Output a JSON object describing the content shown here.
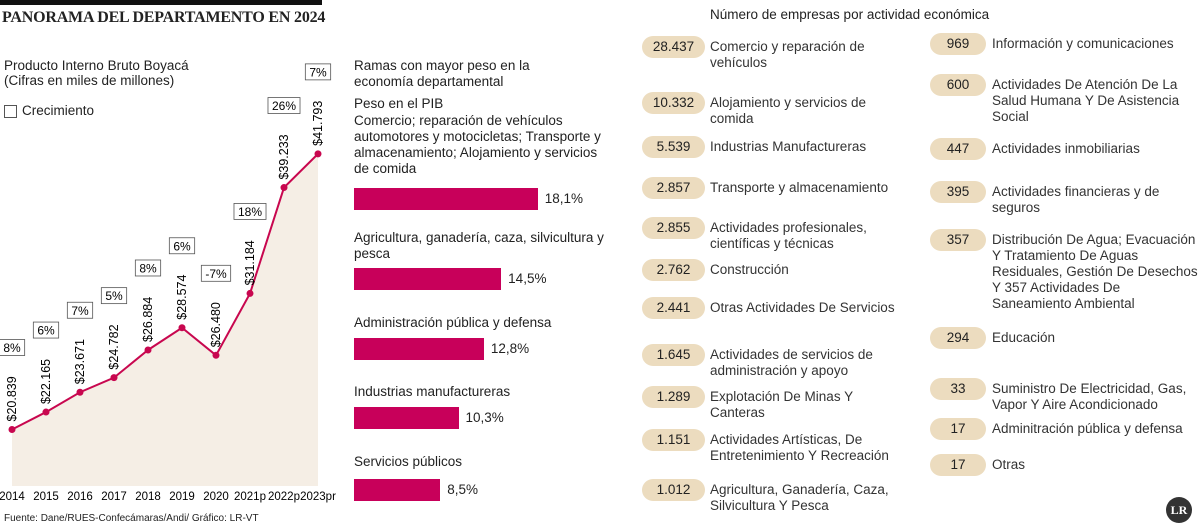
{
  "title": "PANORAMA DEL DEPARTAMENTO EN 2024",
  "source": "Fuente: Dane/RUES-Confecámaras/Andi/ Gráfico: LR-VT",
  "logo": "LR",
  "chart_data": [
    {
      "type": "line",
      "title": "Producto Interno Bruto Boyacá",
      "subtitle": "(Cifras en miles de millones)",
      "categories": [
        "2014",
        "2015",
        "2016",
        "2017",
        "2018",
        "2019",
        "2020",
        "2021p",
        "2022p",
        "2023pr"
      ],
      "values": [
        20839,
        22165,
        23671,
        24782,
        26884,
        28574,
        26480,
        31184,
        39233,
        41793
      ],
      "value_labels": [
        "$20.839",
        "$22.165",
        "$23.671",
        "$24.782",
        "$26.884",
        "$28.574",
        "$26.480",
        "$31.184",
        "$39.233",
        "$41.793"
      ],
      "color": "#c8074f",
      "area_color": "#f5eee5",
      "ylim": [
        17000,
        43000
      ],
      "growth": {
        "name": "Crecimiento",
        "values": [
          8,
          6,
          7,
          5,
          8,
          6,
          -7,
          18,
          26,
          7
        ],
        "value_labels": [
          "8%",
          "6%",
          "7%",
          "5%",
          "8%",
          "6%",
          "-7%",
          "18%",
          "26%",
          "7%"
        ]
      }
    },
    {
      "type": "bar",
      "orientation": "horizontal",
      "title": "Ramas con mayor peso en la economía departamental",
      "subtitle": "Peso en el PIB",
      "categories": [
        "Comercio; reparación de vehículos automotores y motocicletas; Transporte y almacenamiento; Alojamiento y servicios de comida",
        "Agricultura, ganadería, caza, silvicultura y pesca",
        "Administración pública y defensa",
        "Industrias manufactureras",
        "Servicios públicos"
      ],
      "values": [
        18.1,
        14.5,
        12.8,
        10.3,
        8.5
      ],
      "value_labels": [
        "18,1%",
        "14,5%",
        "12,8%",
        "10,3%",
        "8,5%"
      ],
      "color": "#c8005a",
      "xlim": [
        0,
        20
      ]
    }
  ],
  "businesses": {
    "title": "Número de empresas por actividad económica",
    "columns": [
      [
        {
          "count": "28.437",
          "label": "Comercio y reparación de vehículos"
        },
        {
          "count": "10.332",
          "label": "Alojamiento y servicios de comida"
        },
        {
          "count": "5.539",
          "label": "Industrias Manufactureras"
        },
        {
          "count": "2.857",
          "label": "Transporte y almacenamiento"
        },
        {
          "count": "2.855",
          "label": "Actividades profesionales, científicas y técnicas"
        },
        {
          "count": "2.762",
          "label": "Construcción"
        },
        {
          "count": "2.441",
          "label": "Otras Actividades De Servicios"
        },
        {
          "count": "1.645",
          "label": "Actividades de servicios de administración y apoyo"
        },
        {
          "count": "1.289",
          "label": "Explotación De Minas Y Canteras"
        },
        {
          "count": "1.151",
          "label": "Actividades Artísticas, De Entretenimiento Y Recreación"
        },
        {
          "count": "1.012",
          "label": "Agricultura, Ganadería, Caza, Silvicultura Y Pesca"
        }
      ],
      [
        {
          "count": "969",
          "label": "Información y comunicaciones"
        },
        {
          "count": "600",
          "label": "Actividades De Atención De La Salud Humana Y De Asistencia Social"
        },
        {
          "count": "447",
          "label": "Actividades inmobiliarias"
        },
        {
          "count": "395",
          "label": "Actividades financieras y de seguros"
        },
        {
          "count": "357",
          "label": "Distribución De Agua; Evacuación Y Tratamiento De Aguas Residuales, Gestión De Desechos Y 357 Actividades De Saneamiento Ambiental"
        },
        {
          "count": "294",
          "label": "Educación"
        },
        {
          "count": "33",
          "label": "Suministro De Electricidad, Gas, Vapor Y Aire Acondicionado"
        },
        {
          "count": "17",
          "label": "Adminitración pública y defensa"
        },
        {
          "count": "17",
          "label": "Otras"
        }
      ]
    ]
  }
}
